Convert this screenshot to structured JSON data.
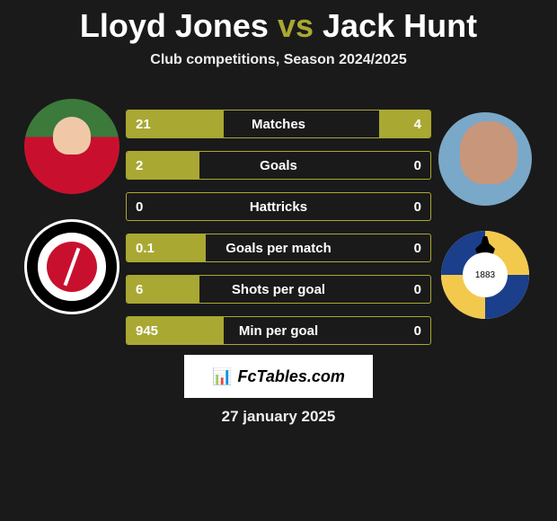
{
  "title": {
    "player1": "Lloyd Jones",
    "vs": "vs",
    "player2": "Jack Hunt"
  },
  "subtitle": "Club competitions, Season 2024/2025",
  "club2_year": "1883",
  "bars": [
    {
      "name": "Matches",
      "left_val": "21",
      "right_val": "4",
      "left_fill_pct": 32,
      "right_fill_pct": 17
    },
    {
      "name": "Goals",
      "left_val": "2",
      "right_val": "0",
      "left_fill_pct": 24,
      "right_fill_pct": 0
    },
    {
      "name": "Hattricks",
      "left_val": "0",
      "right_val": "0",
      "left_fill_pct": 0,
      "right_fill_pct": 0
    },
    {
      "name": "Goals per match",
      "left_val": "0.1",
      "right_val": "0",
      "left_fill_pct": 26,
      "right_fill_pct": 0
    },
    {
      "name": "Shots per goal",
      "left_val": "6",
      "right_val": "0",
      "left_fill_pct": 24,
      "right_fill_pct": 0
    },
    {
      "name": "Min per goal",
      "left_val": "945",
      "right_val": "0",
      "left_fill_pct": 32,
      "right_fill_pct": 0
    }
  ],
  "watermark": "FcTables.com",
  "date": "27 january 2025",
  "colors": {
    "accent": "#a9a833",
    "background": "#1a1a1a",
    "text": "#ffffff"
  }
}
